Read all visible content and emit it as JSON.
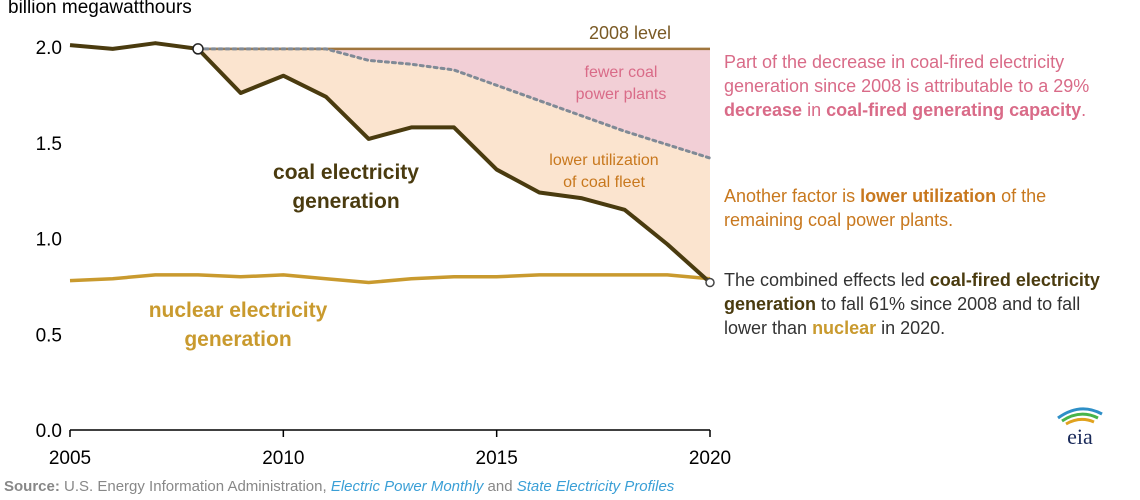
{
  "chart_data": {
    "type": "line",
    "title": "",
    "ylabel": "billion megawatthours",
    "xlabel": "",
    "x": [
      2005,
      2006,
      2007,
      2008,
      2009,
      2010,
      2011,
      2012,
      2013,
      2014,
      2015,
      2016,
      2017,
      2018,
      2019,
      2020
    ],
    "xlim": [
      2005,
      2020
    ],
    "ylim": [
      0.0,
      2.0
    ],
    "x_ticks": [
      "2005",
      "2010",
      "2015",
      "2020"
    ],
    "y_ticks": [
      "0.0",
      "0.5",
      "1.0",
      "1.5",
      "2.0"
    ],
    "series": [
      {
        "name": "coal electricity generation",
        "color": "#4a3b0f",
        "values": [
          2.01,
          1.99,
          2.02,
          1.99,
          1.76,
          1.85,
          1.74,
          1.52,
          1.58,
          1.58,
          1.36,
          1.24,
          1.21,
          1.15,
          0.97,
          0.77
        ]
      },
      {
        "name": "nuclear electricity generation",
        "color": "#c99a2e",
        "values": [
          0.78,
          0.79,
          0.81,
          0.81,
          0.8,
          0.81,
          0.79,
          0.77,
          0.79,
          0.8,
          0.8,
          0.81,
          0.81,
          0.81,
          0.81,
          0.79
        ]
      },
      {
        "name": "fewer coal power plants (capacity-adjusted 2008 level)",
        "color": "#808a96",
        "style": "dotted",
        "x": [
          2008,
          2009,
          2010,
          2011,
          2012,
          2013,
          2014,
          2015,
          2016,
          2017,
          2018,
          2019,
          2020
        ],
        "values": [
          1.99,
          1.99,
          1.99,
          1.99,
          1.93,
          1.91,
          1.88,
          1.8,
          1.72,
          1.64,
          1.56,
          1.49,
          1.42
        ]
      }
    ],
    "reference_line": {
      "label": "2008 level",
      "value": 1.99,
      "color": "#a0763e"
    },
    "region_labels": {
      "fewer_plants": [
        "fewer coal",
        "power plants"
      ],
      "lower_utilization": [
        "lower utilization",
        "of coal fleet"
      ]
    },
    "series_labels": {
      "coal": [
        "coal electricity",
        "generation"
      ],
      "nuclear": [
        "nuclear electricity",
        "generation"
      ]
    },
    "colors": {
      "axis": "#000000",
      "pink_fill": "#f2cfd6",
      "peach_fill": "#fbe4cf",
      "pink_text": "#d96b88",
      "orange_text": "#c8781e",
      "coal": "#4a3b0f",
      "nuclear": "#c99a2e",
      "reference": "#a0763e"
    }
  },
  "notes": {
    "capacity": {
      "p1": "Part of the decrease in coal-fired electricity generation since 2008 is attributable to a 29% ",
      "b1": "decrease",
      "p2": " in ",
      "b2": "coal-fired generating capacity",
      "p3": "."
    },
    "utilization": {
      "p1": "Another factor is ",
      "b1": "lower utilization",
      "p2": " of the remaining coal power plants."
    },
    "combined": {
      "p1": "The combined effects led ",
      "b1": "coal-fired electricity generation",
      "p2": " to fall 61% since 2008 and to fall lower than ",
      "b2": "nuclear",
      "p3": " in 2020."
    }
  },
  "source": {
    "label": "Source:",
    "text1": " U.S. Energy Information Administration, ",
    "link1": "Electric Power Monthly",
    "text2": " and ",
    "link2": "State Electricity Profiles"
  },
  "logo": {
    "text": "eia"
  }
}
